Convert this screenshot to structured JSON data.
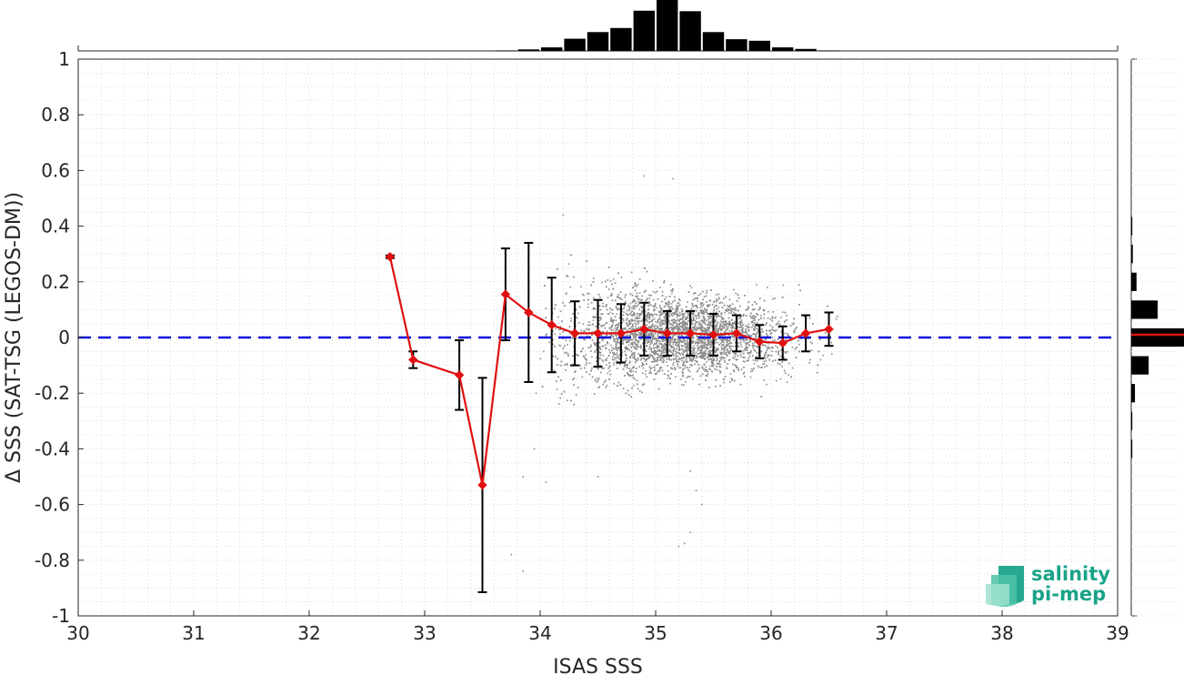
{
  "chart_data": {
    "type": "scatter",
    "xlabel": "ISAS SSS",
    "ylabel": "Δ SSS (SAT-TSG (LEGOS-DM))",
    "xlim": [
      30,
      39
    ],
    "ylim": [
      -1,
      1
    ],
    "xticks": [
      "30",
      "31",
      "32",
      "33",
      "34",
      "35",
      "36",
      "37",
      "38",
      "39"
    ],
    "yticks": [
      "1",
      "0.8",
      "0.6",
      "0.4",
      "0.2",
      "0",
      "-0.2",
      "-0.4",
      "-0.6",
      "-0.8",
      "-1"
    ],
    "grid": true,
    "reference_line": {
      "y": 0,
      "style": "dashed",
      "color": "#1010dd"
    },
    "scatter_color": "#8c8c8c",
    "scatter_cloud": {
      "x_range": [
        33.8,
        36.6
      ],
      "y_range": [
        -0.75,
        0.6
      ],
      "note": "dense cloud of grey points"
    },
    "binned_mean": {
      "color": "#e01010",
      "errorbar_color": "#000000",
      "x": [
        32.7,
        32.9,
        33.3,
        33.5,
        33.7,
        33.9,
        34.1,
        34.3,
        34.5,
        34.7,
        34.9,
        35.1,
        35.3,
        35.5,
        35.7,
        35.9,
        36.1,
        36.3,
        36.5
      ],
      "y": [
        0.29,
        -0.08,
        -0.135,
        -0.53,
        0.155,
        0.09,
        0.045,
        0.015,
        0.015,
        0.015,
        0.03,
        0.015,
        0.015,
        0.01,
        0.015,
        -0.015,
        -0.02,
        0.015,
        0.03
      ],
      "err": [
        0.005,
        0.03,
        0.125,
        0.385,
        0.165,
        0.25,
        0.17,
        0.115,
        0.12,
        0.105,
        0.095,
        0.08,
        0.08,
        0.075,
        0.065,
        0.06,
        0.06,
        0.065,
        0.06
      ]
    },
    "top_histogram": {
      "bin_centers": [
        33.7,
        33.9,
        34.1,
        34.3,
        34.5,
        34.7,
        34.9,
        35.1,
        35.3,
        35.5,
        35.7,
        35.9,
        36.1,
        36.3,
        36.5
      ],
      "counts": [
        0.01,
        0.03,
        0.07,
        0.24,
        0.37,
        0.45,
        0.79,
        1.0,
        0.78,
        0.37,
        0.23,
        0.2,
        0.07,
        0.04,
        0.01
      ]
    },
    "right_histogram": {
      "bin_centers": [
        0.4,
        0.3,
        0.2,
        0.1,
        0.0,
        -0.1,
        -0.2,
        -0.3,
        -0.4
      ],
      "counts": [
        0.02,
        0.03,
        0.1,
        0.5,
        1.0,
        0.33,
        0.07,
        0.02,
        0.02
      ],
      "mean_line_y": 0.01
    }
  },
  "logo": {
    "line1": "salinity",
    "line2": "pi-mep"
  }
}
